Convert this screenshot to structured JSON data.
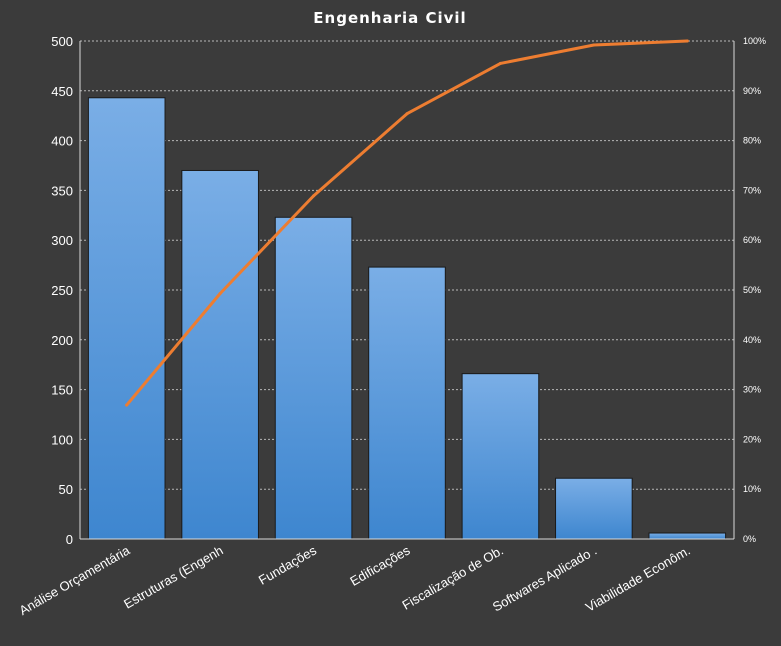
{
  "chart_data": {
    "type": "bar",
    "title": "Engenharia  Civil",
    "categories": [
      "Análise Orçamentária",
      "Estruturas (Engenh",
      "Fundações",
      "Edificações",
      "Fiscalização de Ob.",
      "Softwares Aplicado .",
      "Viabilidade Econôm."
    ],
    "series": [
      {
        "type": "bar",
        "values": [
          443,
          370,
          323,
          273,
          166,
          61,
          6
        ]
      },
      {
        "type": "line",
        "axis": "secondary",
        "values": [
          26.9,
          49.3,
          68.9,
          85.4,
          95.5,
          99.2,
          100
        ]
      }
    ],
    "ylim": [
      0,
      500
    ],
    "yticks": [
      "0",
      "50",
      "100",
      "150",
      "200",
      "250",
      "300",
      "350",
      "400",
      "450",
      "500"
    ],
    "y2lim": [
      0,
      100
    ],
    "y2ticks": [
      "0%",
      "10%",
      "20%",
      "30%",
      "40%",
      "50%",
      "60%",
      "70%",
      "80%",
      "90%",
      "100%"
    ],
    "grid": true,
    "legend": "none",
    "colors": {
      "background": "#3b3b3b",
      "bar_top": "#7aaee6",
      "bar_bottom": "#3e86cf",
      "line": "#ed7d31",
      "grid": "#b8b8b8",
      "text": "#ffffff"
    }
  }
}
